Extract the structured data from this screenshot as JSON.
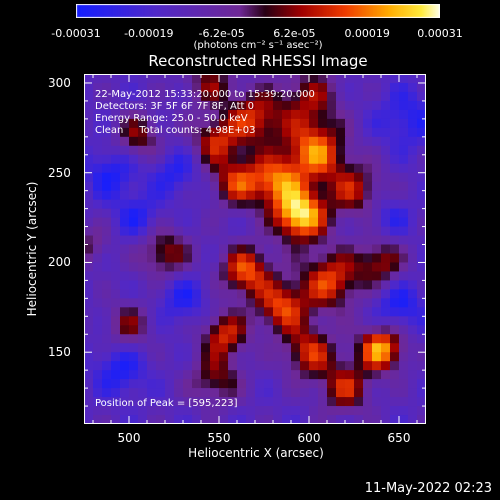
{
  "colorbar": {
    "ticks": [
      "-0.00031",
      "-0.00019",
      "-6.2e-05",
      "6.2e-05",
      "0.00019",
      "0.00031"
    ],
    "label": "(photons cm⁻² s⁻¹ asec⁻²)",
    "range": [
      -0.00031,
      0.00031
    ]
  },
  "chart_data": {
    "type": "heatmap",
    "title": "Reconstructed RHESSI Image",
    "xlabel": "Heliocentric X (arcsec)",
    "ylabel": "Heliocentric Y (arcsec)",
    "xlim": [
      475,
      665
    ],
    "ylim": [
      110,
      305
    ],
    "xticks": [
      "500",
      "550",
      "600",
      "650"
    ],
    "yticks": [
      "300",
      "250",
      "200",
      "150"
    ],
    "annotations": {
      "time": "22-May-2012 15:33:20.000 to 15:39:20.000",
      "detectors": "Detectors: 3F 5F 6F 7F 8F, Att 0",
      "energy": "Energy Range: 25.0 - 50.0 keV",
      "clean": "Clean     Total counts: 4.98E+03",
      "peak": "Position of Peak = [595,223]"
    },
    "peak": [
      595,
      223
    ],
    "blobs": [
      {
        "x": 595,
        "y": 226,
        "amp": 1.0,
        "s": 10
      },
      {
        "x": 603,
        "y": 262,
        "amp": 0.75,
        "s": 12
      },
      {
        "x": 582,
        "y": 245,
        "amp": 0.65,
        "s": 10
      },
      {
        "x": 570,
        "y": 280,
        "amp": 0.6,
        "s": 11
      },
      {
        "x": 560,
        "y": 245,
        "amp": 0.6,
        "s": 10
      },
      {
        "x": 548,
        "y": 268,
        "amp": 0.55,
        "s": 9
      },
      {
        "x": 625,
        "y": 240,
        "amp": 0.5,
        "s": 11
      },
      {
        "x": 565,
        "y": 195,
        "amp": 0.7,
        "s": 10
      },
      {
        "x": 585,
        "y": 175,
        "amp": 0.65,
        "s": 10
      },
      {
        "x": 612,
        "y": 190,
        "amp": 0.65,
        "s": 12
      },
      {
        "x": 640,
        "y": 200,
        "amp": 0.5,
        "s": 9
      },
      {
        "x": 600,
        "y": 150,
        "amp": 0.6,
        "s": 10
      },
      {
        "x": 640,
        "y": 152,
        "amp": 0.85,
        "s": 9
      },
      {
        "x": 620,
        "y": 130,
        "amp": 0.55,
        "s": 10
      },
      {
        "x": 553,
        "y": 160,
        "amp": 0.6,
        "s": 9
      },
      {
        "x": 548,
        "y": 135,
        "amp": 0.45,
        "s": 10
      },
      {
        "x": 520,
        "y": 205,
        "amp": 0.5,
        "s": 10
      },
      {
        "x": 505,
        "y": 270,
        "amp": 0.45,
        "s": 9
      },
      {
        "x": 500,
        "y": 165,
        "amp": 0.4,
        "s": 9
      },
      {
        "x": 478,
        "y": 210,
        "amp": 0.3,
        "s": 8
      },
      {
        "x": 600,
        "y": 292,
        "amp": 0.45,
        "s": 12
      },
      {
        "x": 545,
        "y": 300,
        "amp": 0.4,
        "s": 10
      },
      {
        "x": 490,
        "y": 250,
        "amp": -0.35,
        "s": 10
      },
      {
        "x": 505,
        "y": 225,
        "amp": -0.3,
        "s": 9
      },
      {
        "x": 495,
        "y": 140,
        "amp": -0.35,
        "s": 10
      },
      {
        "x": 530,
        "y": 180,
        "amp": -0.3,
        "s": 10
      },
      {
        "x": 650,
        "y": 175,
        "amp": -0.35,
        "s": 10
      },
      {
        "x": 655,
        "y": 280,
        "amp": -0.3,
        "s": 12
      },
      {
        "x": 525,
        "y": 250,
        "amp": -0.3,
        "s": 9
      },
      {
        "x": 645,
        "y": 225,
        "amp": -0.25,
        "s": 8
      }
    ]
  },
  "footer": {
    "timestamp": "11-May-2022 02:23"
  }
}
